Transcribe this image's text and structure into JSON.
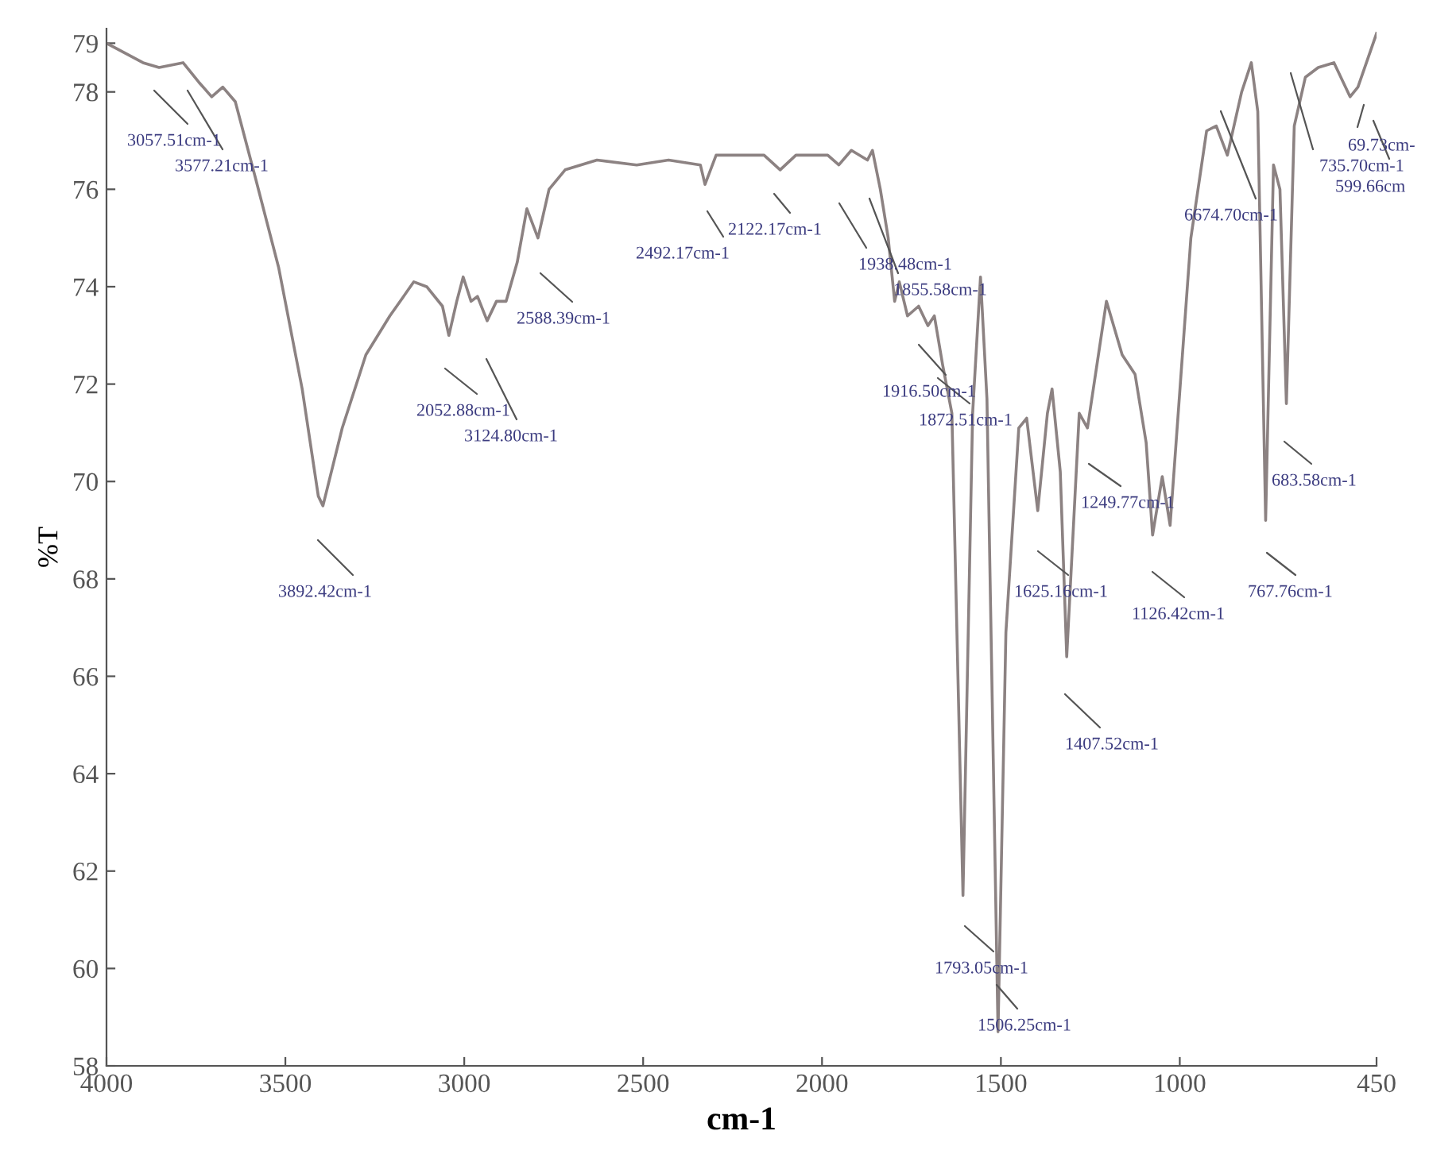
{
  "chart_data": {
    "type": "line",
    "xlabel": "cm-1",
    "ylabel": "%T",
    "xlim": [
      4000,
      450
    ],
    "xticks": [
      4000,
      3500,
      3000,
      2500,
      2000,
      1500,
      1000,
      450
    ],
    "ylim": [
      58,
      79.3
    ],
    "yticks": [
      58,
      60,
      62,
      64,
      66,
      68,
      70,
      72,
      74,
      76,
      78,
      79
    ],
    "grid": false,
    "legend": false,
    "marker": "none",
    "line_style": "solid",
    "series": [
      {
        "color": "#8c8282",
        "x": [
          4000,
          3898,
          3853,
          3786,
          3742,
          3706,
          3675,
          3640,
          3586,
          3519,
          3453,
          3408,
          3395,
          3341,
          3275,
          3208,
          3141,
          3105,
          3061,
          3043,
          3021,
          3003,
          2981,
          2963,
          2936,
          2910,
          2883,
          2852,
          2825,
          2794,
          2763,
          2718,
          2629,
          2518,
          2429,
          2340,
          2327,
          2296,
          2162,
          2117,
          2073,
          1984,
          1953,
          1918,
          1873,
          1859,
          1837,
          1815,
          1797,
          1784,
          1761,
          1730,
          1704,
          1686,
          1663,
          1637,
          1606,
          1579,
          1557,
          1539,
          1508,
          1486,
          1450,
          1428,
          1397,
          1370,
          1357,
          1334,
          1316,
          1281,
          1258,
          1205,
          1161,
          1125,
          1094,
          1076,
          1049,
          1027,
          969,
          925,
          898,
          867,
          827,
          800,
          782,
          760,
          738,
          720,
          702,
          680,
          649,
          613,
          569,
          524,
          502,
          450
        ],
        "values": [
          79.0,
          78.6,
          78.5,
          78.6,
          78.2,
          77.9,
          78.1,
          77.8,
          76.3,
          74.4,
          71.9,
          69.7,
          69.5,
          71.1,
          72.6,
          73.4,
          74.1,
          74.0,
          73.6,
          73.0,
          73.7,
          74.2,
          73.7,
          73.8,
          73.3,
          73.7,
          73.7,
          74.5,
          75.6,
          75.0,
          76.0,
          76.4,
          76.6,
          76.5,
          76.6,
          76.5,
          76.1,
          76.7,
          76.7,
          76.4,
          76.7,
          76.7,
          76.5,
          76.8,
          76.6,
          76.8,
          76.0,
          75.0,
          73.7,
          74.1,
          73.4,
          73.6,
          73.2,
          73.4,
          72.4,
          71.4,
          61.5,
          71.4,
          74.2,
          71.7,
          58.7,
          66.9,
          71.1,
          71.3,
          69.4,
          71.4,
          71.9,
          70.2,
          66.4,
          71.4,
          71.1,
          73.7,
          72.6,
          72.2,
          70.8,
          68.9,
          70.1,
          69.1,
          75.0,
          77.2,
          77.3,
          76.7,
          78.0,
          78.6,
          77.6,
          69.2,
          76.5,
          76.0,
          71.6,
          77.3,
          78.3,
          78.5,
          78.6,
          77.9,
          78.1,
          79.2
        ]
      }
    ],
    "annotations": [
      "3057.51cm-1",
      "3577.21cm-1",
      "3892.42cm-1",
      "2052.88cm-1",
      "3124.80cm-1",
      "2588.39cm-1",
      "2492.17cm-1",
      "2122.17cm-1",
      "1938.48cm-1",
      "1855.58cm-1",
      "1916.50cm-1",
      "1872.51cm-1",
      "1793.05cm-1",
      "1506.25cm-1",
      "1625.16cm-1",
      "1407.52cm-1",
      "1249.77cm-1",
      "1126.42cm-1",
      "6674.70cm-1",
      "767.76cm-1",
      "683.58cm-1",
      "735.70cm-1",
      "69.73cm-",
      "599.66cm"
    ]
  }
}
